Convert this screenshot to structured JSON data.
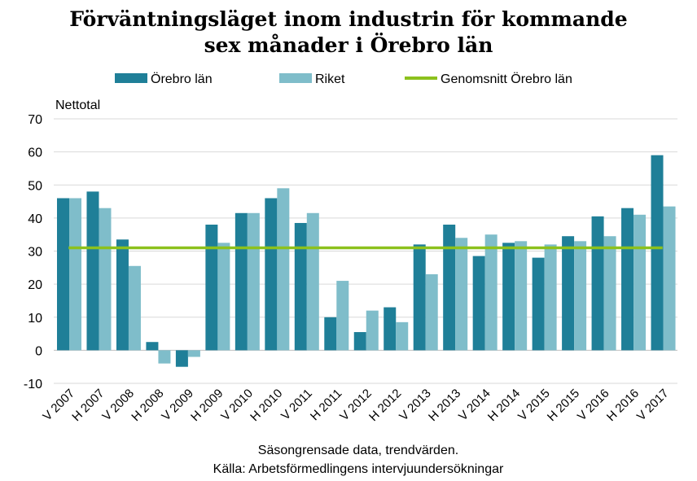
{
  "chart_data": {
    "type": "bar",
    "title_lines": [
      "Förväntningsläget inom industrin för kommande",
      "sex månader i Örebro län"
    ],
    "ylabel": "Nettotal",
    "ylim": [
      -10,
      70
    ],
    "yticks": [
      70,
      60,
      50,
      40,
      30,
      20,
      10,
      0,
      -10
    ],
    "grid": true,
    "legend_position": "top",
    "categories": [
      "V 2007",
      "H 2007",
      "V 2008",
      "H 2008",
      "V 2009",
      "H 2009",
      "V 2010",
      "H 2010",
      "V 2011",
      "H 2011",
      "V 2012",
      "H 2012",
      "V 2013",
      "H 2013",
      "V 2014",
      "H 2014",
      "V 2015",
      "H 2015",
      "V 2016",
      "H 2016",
      "V 2017"
    ],
    "series": [
      {
        "name": "Örebro län",
        "color": "#1f7f98",
        "values": [
          46,
          48,
          33.5,
          2.5,
          -5,
          38,
          41.5,
          46,
          38.5,
          10,
          5.5,
          13,
          32,
          38,
          28.5,
          32.5,
          28,
          34.5,
          40.5,
          43,
          59
        ]
      },
      {
        "name": "Riket",
        "color": "#7fbdca",
        "values": [
          46,
          43,
          25.5,
          -4,
          -2,
          32.5,
          41.5,
          49,
          41.5,
          21,
          12,
          8.5,
          23,
          34,
          35,
          33,
          32,
          33,
          34.5,
          41,
          43.5
        ]
      }
    ],
    "average_line": {
      "name": "Genomsnitt Örebro län",
      "color": "#8cc11d",
      "value": 31
    },
    "notes": [
      "Säsongrensade data, trendvärden.",
      "Källa: Arbetsförmedlingens  intervjuundersökningar"
    ]
  }
}
